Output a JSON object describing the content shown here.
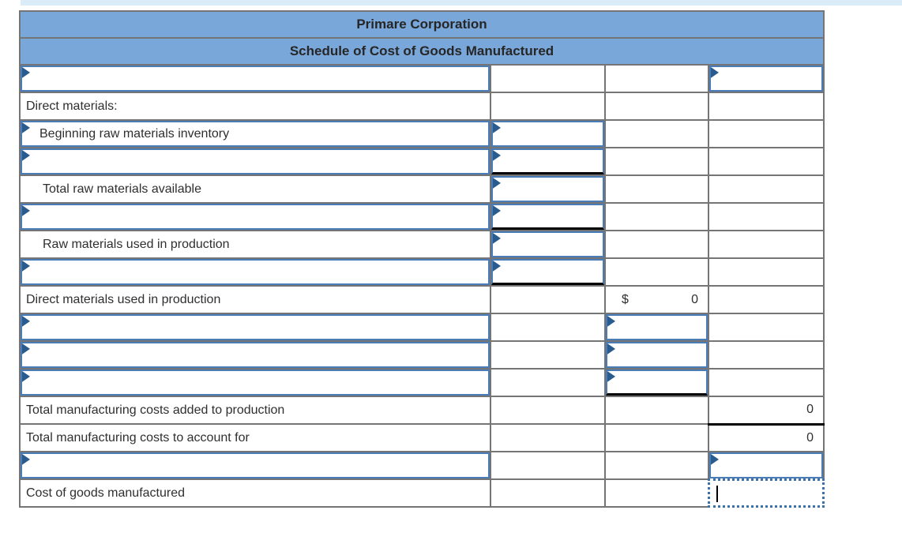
{
  "header": {
    "title": "Primare Corporation",
    "subtitle": "Schedule of Cost of Goods Manufactured"
  },
  "lines": {
    "section_direct_materials": "Direct materials:",
    "beginning_raw_materials": "Beginning raw materials inventory",
    "total_raw_materials_available": "Total raw materials available",
    "raw_materials_used": "Raw materials used in production",
    "direct_materials_used": "Direct materials used in production",
    "total_mfg_costs_added": "Total manufacturing costs added to production",
    "total_mfg_costs_to_account": "Total manufacturing costs to account for",
    "cost_of_goods_manufactured": "Cost of goods manufactured"
  },
  "amounts": {
    "direct_materials_used_currency": "$",
    "direct_materials_used": "0",
    "total_mfg_costs_added": "0",
    "total_mfg_costs_to_account": "0"
  },
  "colors": {
    "header_fill": "#79a7d9",
    "input_border": "#4a7db8",
    "entry_marker": "#2a5b8f",
    "grid_border": "#757575",
    "underline": "#000000",
    "active_cell_border": "#3c72aa",
    "top_strip": "#d9ecf7"
  }
}
